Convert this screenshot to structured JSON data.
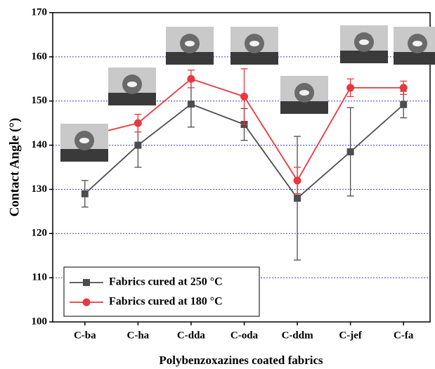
{
  "chart_data": {
    "type": "line",
    "x_label": "Polybenzoxazines coated fabrics",
    "y_label": "Contact Angle (°)",
    "categories": [
      "C-ba",
      "C-ha",
      "C-dda",
      "C-oda",
      "C-ddm",
      "C-jef",
      "C-fa"
    ],
    "series": [
      {
        "name": "Fabrics cured at 250 °C",
        "color": "#4d4d4d",
        "marker": "square",
        "values": [
          129,
          140,
          149.3,
          144.7,
          128,
          138.5,
          149.2
        ],
        "errors": [
          3,
          5,
          5.2,
          3.6,
          14,
          10,
          3
        ]
      },
      {
        "name": "Fabrics cured at 180 °C",
        "color": "#e8383d",
        "marker": "circle",
        "values": [
          142,
          145,
          155,
          151,
          132,
          153,
          153
        ],
        "errors": [
          2,
          2,
          2,
          6.3,
          3,
          2,
          1.5
        ]
      }
    ],
    "ylim": [
      100,
      170
    ],
    "yticks": [
      100,
      110,
      120,
      130,
      140,
      150,
      160,
      170
    ],
    "grid": true,
    "legend": "lower left"
  }
}
